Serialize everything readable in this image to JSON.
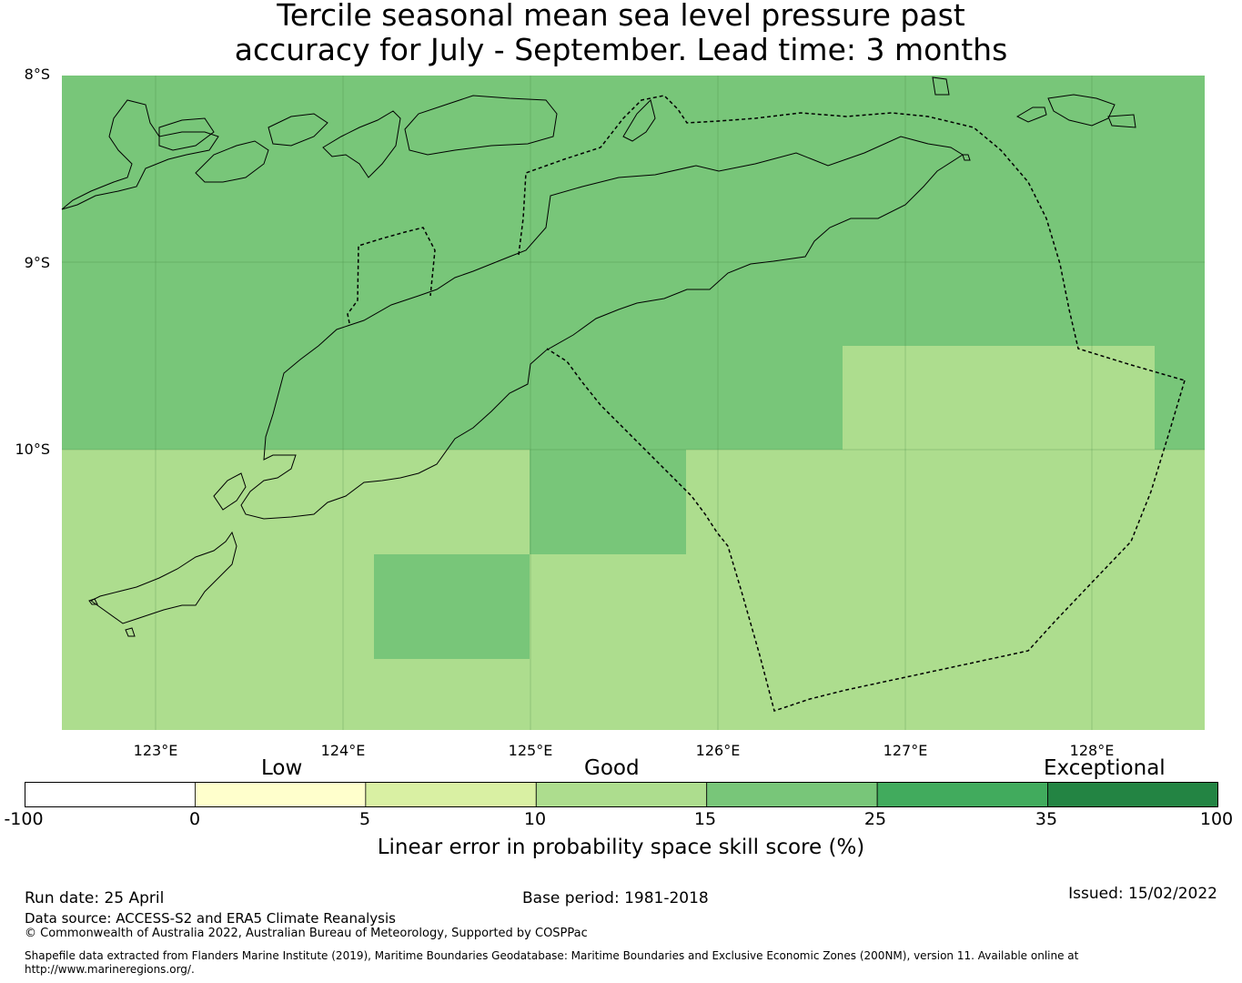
{
  "title": {
    "line1": "Tercile seasonal mean sea level pressure past",
    "line2": "accuracy for July - September. Lead time: 3 months"
  },
  "map": {
    "lat_labels": [
      "8°S",
      "9°S",
      "10°S"
    ],
    "lon_labels": [
      "123°E",
      "124°E",
      "125°E",
      "126°E",
      "127°E",
      "128°E"
    ],
    "colors": {
      "band_15_25": "#78c679",
      "band_10_15": "#addd8e"
    }
  },
  "colorbar": {
    "categories": [
      "Low",
      "Good",
      "Exceptional"
    ],
    "ticks": [
      "-100",
      "0",
      "5",
      "10",
      "15",
      "25",
      "35",
      "100"
    ],
    "colors": [
      "#ffffff",
      "#ffffcc",
      "#d9f0a3",
      "#addd8e",
      "#78c679",
      "#41ab5d",
      "#238443"
    ],
    "label": "Linear error in probability space skill score (%)"
  },
  "footer": {
    "run_date": "Run date: 25 April",
    "base_period": "Base period: 1981-2018",
    "issued": "Issued: 15/02/2022",
    "data_source": "Data source: ACCESS-S2 and ERA5 Climate Reanalysis",
    "copyright": "© Commonwealth of Australia 2022, Australian Bureau of Meteorology, Supported by COSPPac",
    "shapefile_line1": "Shapefile data extracted from Flanders Marine Institute (2019), Maritime Boundaries Geodatabase: Maritime Boundaries and Exclusive Economic Zones (200NM), version 11. Available online at",
    "shapefile_line2": "http://www.marineregions.org/."
  }
}
